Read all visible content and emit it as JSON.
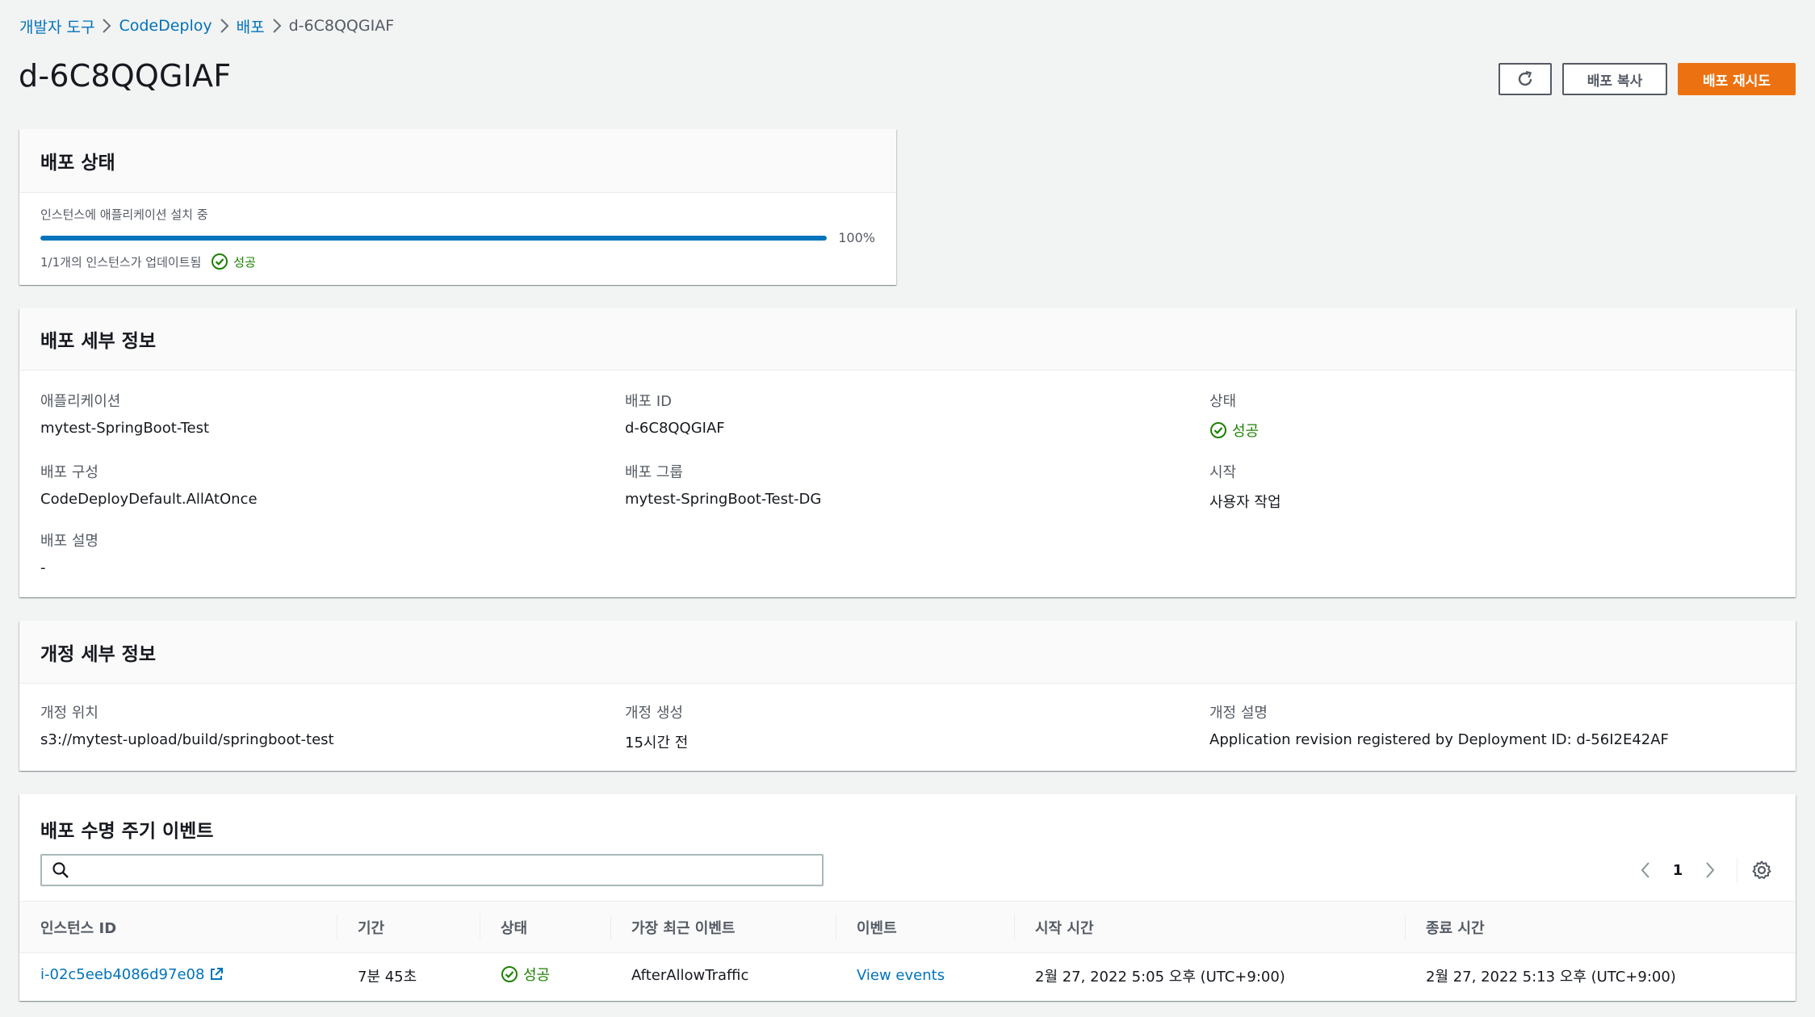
{
  "breadcrumb": [
    "개발자 도구",
    "CodeDeploy",
    "배포",
    "d-6C8QQGIAF"
  ],
  "page_title": "d-6C8QQGIAF",
  "actions": {
    "copy": "배포 복사",
    "retry": "배포 재시도"
  },
  "status": {
    "title": "배포 상태",
    "progress_label": "인스턴스에 애플리케이션 설치 중",
    "progress_percent": 100,
    "progress_text": "100%",
    "instances_text": "1/1개의 인스턴스가 업데이트됨",
    "result": "성공"
  },
  "details": {
    "title": "배포 세부 정보",
    "application_key": "애플리케이션",
    "application_val": "mytest-SpringBoot-Test",
    "deployment_id_key": "배포 ID",
    "deployment_id_val": "d-6C8QQGIAF",
    "status_key": "상태",
    "status_val": "성공",
    "config_key": "배포 구성",
    "config_val": "CodeDeployDefault.AllAtOnce",
    "group_key": "배포 그룹",
    "group_val": "mytest-SpringBoot-Test-DG",
    "initiated_key": "시작",
    "initiated_val": "사용자 작업",
    "description_key": "배포 설명",
    "description_val": "-"
  },
  "revision": {
    "title": "개정 세부 정보",
    "location_key": "개정 위치",
    "location_val": "s3://mytest-upload/build/springboot-test",
    "created_key": "개정 생성",
    "created_val": "15시간 전",
    "description_key": "개정 설명",
    "description_val": "Application revision registered by Deployment ID: d-56I2E42AF"
  },
  "events": {
    "title": "배포 수명 주기 이벤트",
    "search_placeholder": "",
    "page": "1",
    "columns": [
      "인스턴스 ID",
      "기간",
      "상태",
      "가장 최근 이벤트",
      "이벤트",
      "시작 시간",
      "종료 시간"
    ],
    "rows": [
      {
        "instance_id": "i-02c5eeb4086d97e08",
        "duration": "7분 45초",
        "status": "성공",
        "last_event": "AfterAllowTraffic",
        "events_link": "View events",
        "start_time": "2월 27, 2022 5:05 오후 (UTC+9:00)",
        "end_time": "2월 27, 2022 5:13 오후 (UTC+9:00)"
      }
    ]
  },
  "colors": {
    "accent": "#0073bb",
    "primary_button": "#ec7211",
    "success": "#1d8102"
  },
  "icons": [
    "chevron-right-icon",
    "refresh-icon",
    "success-icon",
    "search-icon",
    "angle-left-icon",
    "angle-right-icon",
    "settings-gear-icon",
    "external-link-icon"
  ]
}
